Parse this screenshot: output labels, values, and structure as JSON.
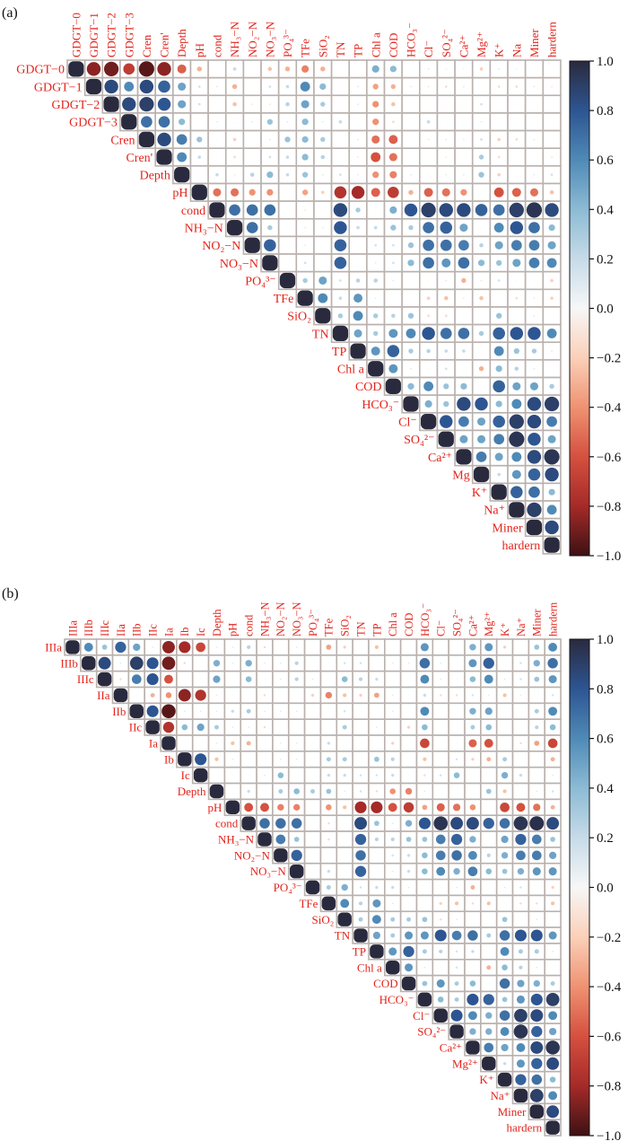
{
  "colorscale": {
    "values": [
      -1,
      -0.8,
      -0.6,
      -0.4,
      -0.2,
      0,
      0.2,
      0.4,
      0.6,
      0.8,
      1
    ],
    "colors": [
      "#3d1114",
      "#a52a28",
      "#d5503f",
      "#ef9272",
      "#fbd0b9",
      "#f7f7f7",
      "#c6dbe8",
      "#8cbbd4",
      "#4f8ab7",
      "#2d5592",
      "#2a2a3e"
    ],
    "ticks": [
      "1.0",
      "0.8",
      "0.6",
      "0.4",
      "0.2",
      "0.0",
      "−0.2",
      "−0.4",
      "−0.6",
      "−0.8",
      "−1.0"
    ]
  },
  "label_color": "#e3241c",
  "grid_color": "#b9b1ad",
  "chart_data": [
    {
      "panel_label": "(a)",
      "type": "heatmap",
      "style": "upper-triangle correlation circles",
      "range": [
        -1,
        1
      ],
      "col_labels": [
        "GDGT−0",
        "GDGT−1",
        "GDGT−2",
        "GDGT−3",
        "Cren",
        "Cren'",
        "Depth",
        "pH",
        "cond",
        "NH₃−N",
        "NO₂−N",
        "NO₃−N",
        "PO₄³⁻",
        "TFe",
        "SiO₂",
        "TN",
        "TP",
        "Chl a",
        "COD",
        "HCO₃⁻",
        "Cl⁻",
        "SO₄²⁻",
        "Ca²⁺",
        "Mg²⁺",
        "K⁺",
        "Na",
        "Miner",
        "hardern"
      ],
      "row_labels": [
        "GDGT−0",
        "GDGT−1",
        "GDGT−2",
        "GDGT−3",
        "Cren",
        "Cren'",
        "Depth",
        "pH",
        "cond",
        "NH₃−N",
        "NO₂−N",
        "NO₃−N",
        "PO₄³⁻",
        "TFe",
        "SiO₂",
        "TN",
        "TP",
        "Chl a",
        "COD",
        "HCO₃⁻",
        "Cl⁻",
        "SO₄²⁻",
        "Ca²⁺",
        "Mg",
        "K⁺",
        "Na⁺",
        "Miner",
        "hardern"
      ],
      "upper_rows": [
        [
          1,
          -0.85,
          -0.9,
          -0.7,
          -0.95,
          -0.85,
          -0.55,
          -0.3,
          0.02,
          0.2,
          0.02,
          -0.25,
          -0.3,
          -0.45,
          -0.3,
          -0.05,
          0.02,
          0.45,
          0.4,
          0.02,
          0.1,
          0.08,
          0.08,
          -0.2,
          0.1,
          0.08,
          0.05,
          0
        ],
        [
          1,
          0.85,
          0.6,
          0.85,
          0.75,
          0.5,
          0.15,
          -0.1,
          -0.3,
          -0.05,
          0.15,
          0.2,
          0.6,
          0.4,
          0.02,
          0.1,
          -0.35,
          -0.3,
          -0.1,
          -0.1,
          -0.15,
          0.1,
          -0.05,
          -0.15,
          -0.15,
          -0.1,
          -0.1
        ],
        [
          1,
          0.85,
          0.9,
          0.8,
          0.5,
          0.15,
          0,
          -0.25,
          -0.1,
          0.1,
          0.25,
          0.5,
          0.3,
          0.03,
          0.1,
          -0.4,
          -0.25,
          -0.05,
          0,
          -0.05,
          -0.05,
          0.15,
          0.02,
          -0.05,
          0,
          0
        ],
        [
          1,
          0.7,
          0.7,
          0.4,
          -0.05,
          0.1,
          -0.05,
          0.1,
          0.35,
          0.1,
          0.4,
          0.1,
          0.2,
          0.02,
          -0.4,
          -0.15,
          -0.05,
          0.2,
          0.05,
          0.05,
          0.1,
          0.05,
          0.05,
          0.02,
          0.02
        ],
        [
          1,
          0.85,
          0.65,
          0.35,
          -0.05,
          -0.2,
          0,
          0.1,
          0.35,
          0.4,
          0.3,
          0,
          -0.1,
          -0.5,
          -0.55,
          0,
          -0.1,
          -0.1,
          -0.1,
          0.15,
          -0.2,
          -0.15,
          -0.1,
          0
        ],
        [
          1,
          0.6,
          0.2,
          0.05,
          -0.15,
          0.05,
          0.15,
          0.2,
          0.4,
          0.25,
          0.05,
          -0.1,
          -0.6,
          -0.5,
          0.05,
          0,
          -0.1,
          0,
          0.3,
          -0.15,
          -0.05,
          0.02,
          0.1
        ],
        [
          1,
          0,
          0.2,
          -0.1,
          0.25,
          0.4,
          0.2,
          0.35,
          0.1,
          0.15,
          -0.1,
          -0.4,
          -0.45,
          0.1,
          0.05,
          0.1,
          0.1,
          0.35,
          -0.2,
          0.05,
          0.1,
          0.15
        ],
        [
          1,
          -0.5,
          -0.5,
          -0.4,
          -0.4,
          0,
          -0.35,
          -0.2,
          -0.75,
          -0.8,
          -0.55,
          -0.7,
          -0.3,
          -0.55,
          -0.5,
          -0.4,
          0,
          -0.6,
          -0.55,
          -0.5,
          -0.25
        ],
        [
          1,
          0.7,
          0.7,
          0.7,
          0,
          -0.1,
          0,
          0.85,
          0.3,
          0.05,
          0.45,
          0.8,
          0.9,
          0.85,
          0.85,
          0.75,
          0.7,
          0.9,
          0.95,
          0.85
        ],
        [
          1,
          0.7,
          0.3,
          0,
          -0.1,
          -0.1,
          0.8,
          0.2,
          0.2,
          0.35,
          0.3,
          0.7,
          0.75,
          0.5,
          0.05,
          0.6,
          0.8,
          0.7,
          0.4
        ],
        [
          1,
          0.75,
          0,
          -0.1,
          -0.05,
          0.75,
          0,
          0.15,
          0.15,
          0.35,
          0.7,
          0.7,
          0.65,
          0.25,
          0.5,
          0.65,
          0.65,
          0.5
        ],
        [
          1,
          0,
          0.15,
          0.05,
          0.75,
          0.05,
          -0.1,
          0.15,
          0.4,
          0.7,
          0.55,
          0.7,
          0.4,
          0.35,
          0.5,
          0.65,
          0.6
        ],
        [
          1,
          0.3,
          0.5,
          0.15,
          0.25,
          0.25,
          0.1,
          0.02,
          -0.05,
          0.1,
          -0.3,
          0.1,
          0.15,
          0.05,
          0.05,
          -0.2
        ],
        [
          1,
          0.6,
          0.2,
          0.55,
          0.1,
          0.05,
          0,
          -0.2,
          -0.25,
          -0.1,
          -0.25,
          0.05,
          -0.15,
          -0.1,
          -0.2
        ],
        [
          1,
          0.3,
          0.6,
          0.3,
          0.25,
          0.35,
          -0.15,
          -0.15,
          0.05,
          0,
          0.35,
          0.05,
          0.1,
          0.05
        ],
        [
          1,
          0.5,
          0.3,
          0.55,
          0.6,
          0.8,
          0.7,
          0.7,
          0.3,
          0.75,
          0.8,
          0.8,
          0.6
        ],
        [
          1,
          0.55,
          0.75,
          0.3,
          0.25,
          0.2,
          0.2,
          0,
          0.6,
          0.35,
          0.3,
          0.1
        ],
        [
          1,
          0.55,
          0.1,
          0.05,
          0.15,
          0.05,
          -0.3,
          0.4,
          0.25,
          0.1,
          0
        ],
        [
          1,
          0.4,
          0.6,
          0.35,
          0.4,
          0.05,
          0.75,
          0.5,
          0.5,
          0.3
        ],
        [
          1,
          0.45,
          0.35,
          0.85,
          0.8,
          0.4,
          0.6,
          0.85,
          0.9
        ],
        [
          1,
          0.8,
          0.65,
          0.5,
          0.75,
          0.9,
          0.85,
          0.65
        ],
        [
          1,
          0.5,
          0.5,
          0.65,
          0.95,
          0.8,
          0.5
        ],
        [
          1,
          0.65,
          0.5,
          0.6,
          0.85,
          0.95
        ],
        [
          1,
          0.2,
          0.55,
          0.75,
          0.85
        ],
        [
          1,
          0.75,
          0.7,
          0.4
        ],
        [
          1,
          0.9,
          0.6
        ],
        [
          1,
          0.85
        ],
        [
          1
        ]
      ]
    },
    {
      "panel_label": "(b)",
      "type": "heatmap",
      "style": "upper-triangle correlation circles",
      "range": [
        -1,
        1
      ],
      "col_labels": [
        "IIIa",
        "IIIb",
        "IIIc",
        "IIa",
        "IIb",
        "IIc",
        "Ia",
        "Ib",
        "Ic",
        "Depth",
        "pH",
        "cond",
        "NH₃−N",
        "NO₂−N",
        "NO₃−N",
        "PO₄³⁻",
        "TFe",
        "SiO₂",
        "TN",
        "TP",
        "Chl a",
        "COD",
        "HCO₃⁻",
        "Cl⁻",
        "SO₄²⁻",
        "Ca²⁺",
        "Mg²⁺",
        "K⁺",
        "Na⁺",
        "Miner",
        "hardern"
      ],
      "row_labels": [
        "IIIa",
        "IIIb",
        "IIIc",
        "IIa",
        "IIb",
        "IIc",
        "Ia",
        "Ib",
        "Ic",
        "Depth",
        "pH",
        "cond",
        "NH₃−N",
        "NO₂−N",
        "NO₃−N",
        "PO₄³⁻",
        "TFe",
        "SiO₂",
        "TN",
        "TP",
        "Chl a",
        "COD",
        "HCO₃⁻",
        "Cl⁻",
        "SO₄²⁻",
        "Ca²⁺",
        "Mg²⁺",
        "K⁺",
        "Na⁺",
        "Miner",
        "hardern"
      ],
      "upper_rows": [
        [
          1,
          0.6,
          0.35,
          0.75,
          0.5,
          0.1,
          -0.85,
          -0.8,
          -0.65,
          0.1,
          0.1,
          0.25,
          -0.15,
          -0.02,
          0.1,
          -0.02,
          -0.35,
          -0.2,
          0,
          -0.25,
          -0.05,
          0.02,
          0.55,
          0.05,
          -0.02,
          0.45,
          0.55,
          -0.2,
          0.05,
          0.35,
          0.6
        ],
        [
          1,
          0.85,
          0.1,
          0.9,
          0.8,
          -0.9,
          -0.15,
          0,
          0.45,
          0.1,
          0.45,
          -0.1,
          0.1,
          0.25,
          0.02,
          -0.05,
          0.15,
          0.15,
          0,
          -0.1,
          -0.1,
          0.7,
          0.1,
          0.05,
          0.55,
          0.75,
          0,
          0.15,
          0.45,
          0.7
        ],
        [
          1,
          -0.15,
          0.65,
          0.8,
          -0.6,
          -0.02,
          0.05,
          0.5,
          0,
          0.4,
          -0.05,
          0.1,
          0.25,
          0.1,
          0.05,
          0.4,
          0.25,
          0.2,
          0,
          -0.02,
          0.6,
          0.1,
          0.05,
          0.4,
          0.6,
          0.1,
          0.15,
          0.35,
          0.55
        ],
        [
          1,
          0.05,
          -0.3,
          -0.4,
          -0.85,
          -0.75,
          -0.1,
          0.05,
          0,
          -0.15,
          -0.05,
          -0.02,
          -0.2,
          -0.45,
          -0.25,
          -0.2,
          -0.35,
          0.1,
          0.05,
          0.2,
          -0.15,
          -0.15,
          0.15,
          0.1,
          -0.25,
          -0.1,
          0,
          0.15
        ],
        [
          1,
          0.8,
          -0.95,
          0.1,
          0.1,
          0.1,
          0.2,
          0.3,
          0.1,
          0.1,
          0.1,
          -0.05,
          -0.05,
          0.15,
          0.05,
          0,
          0.1,
          -0.05,
          0.6,
          0,
          0.02,
          0.45,
          0.5,
          0,
          0.05,
          0.3,
          0.6
        ],
        [
          1,
          -0.75,
          0.4,
          0.5,
          0.3,
          0.1,
          0.1,
          -0.15,
          0.05,
          0.05,
          -0.02,
          0.02,
          0.3,
          0,
          0.1,
          0.05,
          -0.2,
          0.4,
          0,
          0,
          0.3,
          0.4,
          0,
          0.05,
          0.25,
          0.4
        ],
        [
          1,
          0.05,
          0.02,
          -0.1,
          -0.25,
          -0.3,
          0.05,
          -0.1,
          -0.1,
          0.05,
          0.2,
          -0.02,
          -0.05,
          0.05,
          -0.2,
          0,
          -0.65,
          -0.02,
          -0.05,
          -0.55,
          -0.6,
          0,
          -0.15,
          -0.35,
          -0.65
        ],
        [
          1,
          0.8,
          -0.25,
          -0.1,
          -0.05,
          0.05,
          -0.1,
          -0.1,
          0,
          0.3,
          0.3,
          0.05,
          0.35,
          0.25,
          0,
          -0.25,
          0,
          0.15,
          -0.2,
          -0.3,
          0.3,
          0.05,
          -0.02,
          -0.3
        ],
        [
          1,
          0,
          -0.05,
          0.05,
          0.1,
          0.4,
          0.02,
          0,
          0.2,
          0.2,
          0.15,
          0.15,
          0.2,
          -0.05,
          -0.15,
          0.15,
          0.4,
          -0.02,
          -0.05,
          0.45,
          0.2,
          0.05,
          -0.1
        ],
        [
          1,
          0,
          0.2,
          -0.05,
          0.3,
          0.4,
          0.3,
          0.35,
          0.1,
          0.15,
          -0.15,
          -0.4,
          -0.45,
          0.1,
          0.02,
          0,
          0.05,
          0.35,
          -0.25,
          0.02,
          0.1,
          0.15
        ],
        [
          1,
          -0.6,
          -0.6,
          -0.45,
          -0.45,
          0,
          -0.4,
          -0.25,
          -0.8,
          -0.8,
          -0.6,
          -0.7,
          -0.35,
          -0.55,
          -0.5,
          -0.4,
          0,
          -0.65,
          -0.6,
          -0.5,
          -0.3
        ],
        [
          1,
          0.7,
          0.7,
          0.7,
          0.02,
          -0.15,
          0.05,
          0.85,
          0.35,
          0.1,
          0.45,
          0.8,
          0.95,
          0.85,
          0.85,
          0.75,
          0.7,
          0.95,
          0.97,
          0.85
        ],
        [
          1,
          0.65,
          0.35,
          0.02,
          -0.15,
          0,
          0.75,
          0.25,
          0.25,
          0.35,
          0.35,
          0.65,
          0.75,
          0.45,
          0.05,
          0.5,
          0.75,
          0.65,
          0.35
        ],
        [
          1,
          0.75,
          0,
          0,
          0,
          0.7,
          0,
          0.15,
          0.2,
          0.4,
          0.65,
          0.7,
          0.6,
          0.25,
          0.45,
          0.65,
          0.65,
          0.5
        ],
        [
          1,
          0.02,
          0.2,
          0.05,
          0.75,
          0.05,
          -0.1,
          0.2,
          0.4,
          0.6,
          0.45,
          0.65,
          0.4,
          0.35,
          0.45,
          0.55,
          0.55
        ],
        [
          1,
          0.3,
          0.45,
          0.15,
          0.2,
          0.2,
          0.1,
          0,
          -0.05,
          0.1,
          -0.3,
          0,
          0.1,
          0.15,
          0.02,
          -0.2
        ],
        [
          1,
          0.6,
          0.25,
          0.55,
          0.1,
          0.05,
          0,
          -0.2,
          -0.25,
          -0.15,
          -0.25,
          0.05,
          -0.15,
          -0.15,
          -0.25
        ],
        [
          1,
          0.3,
          0.6,
          0.3,
          0.3,
          0.35,
          -0.15,
          -0.1,
          0.05,
          0.02,
          0.35,
          0.05,
          0.1,
          0.05
        ],
        [
          1,
          0.5,
          0.3,
          0.55,
          0.55,
          0.8,
          0.65,
          0.7,
          0.3,
          0.7,
          0.8,
          0.8,
          0.55
        ],
        [
          1,
          0.55,
          0.75,
          0.3,
          0.25,
          0.15,
          0.2,
          0,
          0.6,
          0.3,
          0.3,
          0.1
        ],
        [
          1,
          0.55,
          0.1,
          0.05,
          0.15,
          0.05,
          -0.3,
          0.4,
          0.25,
          0.1,
          0
        ],
        [
          1,
          0.35,
          0.55,
          0.3,
          0.4,
          0.05,
          0.7,
          0.5,
          0.45,
          0.3
        ],
        [
          1,
          0.4,
          0.3,
          0.8,
          0.75,
          0.35,
          0.55,
          0.8,
          0.9
        ],
        [
          1,
          0.8,
          0.6,
          0.45,
          0.7,
          0.9,
          0.85,
          0.6
        ],
        [
          1,
          0.45,
          0.45,
          0.6,
          0.95,
          0.75,
          0.5
        ],
        [
          1,
          0.65,
          0.5,
          0.6,
          0.85,
          0.95
        ],
        [
          1,
          0.2,
          0.55,
          0.75,
          0.85
        ],
        [
          1,
          0.75,
          0.7,
          0.4
        ],
        [
          1,
          0.9,
          0.6
        ],
        [
          1,
          0.85
        ],
        [
          1
        ]
      ]
    }
  ]
}
